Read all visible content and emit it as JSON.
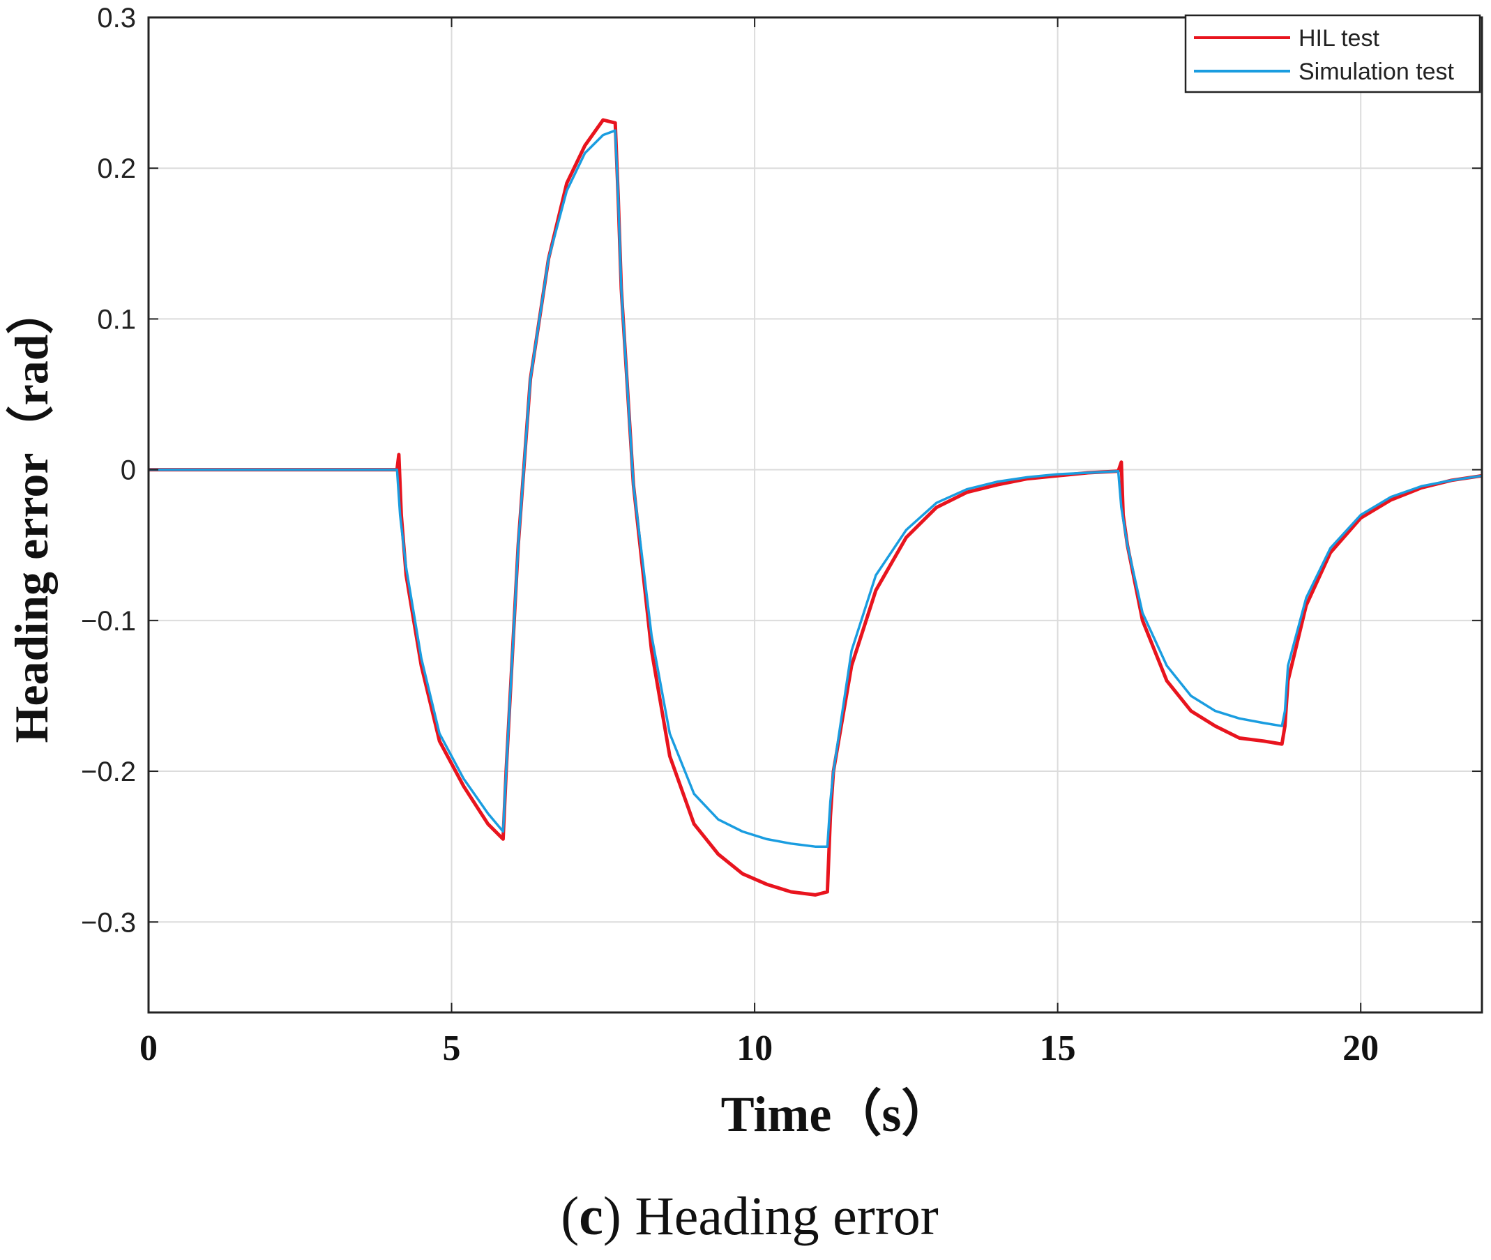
{
  "chart_data": {
    "type": "line",
    "title": "",
    "xlabel": "Time（s）",
    "ylabel": "Heading error（rad）",
    "xlim": [
      0,
      22
    ],
    "ylim": [
      -0.36,
      0.3
    ],
    "xticks": [
      0,
      5,
      10,
      15,
      20
    ],
    "yticks": [
      0.3,
      0.2,
      0.1,
      0,
      -0.1,
      -0.2,
      -0.3
    ],
    "ytick_labels": [
      "0.3",
      "0.2",
      "0.1",
      "0",
      "−0.1",
      "−0.2",
      "−0.3"
    ],
    "grid": true,
    "legend_position": "top-right",
    "series": [
      {
        "name": "HIL  test",
        "color": "#e8141e",
        "x": [
          0,
          4.1,
          4.13,
          4.17,
          4.25,
          4.5,
          4.8,
          5.2,
          5.6,
          5.85,
          5.9,
          6.1,
          6.3,
          6.6,
          6.9,
          7.2,
          7.5,
          7.7,
          7.75,
          7.8,
          8.0,
          8.3,
          8.6,
          9.0,
          9.4,
          9.8,
          10.2,
          10.6,
          11.0,
          11.2,
          11.25,
          11.3,
          11.6,
          12.0,
          12.5,
          13.0,
          13.5,
          14.0,
          14.5,
          15.0,
          15.5,
          16.0,
          16.05,
          16.08,
          16.15,
          16.4,
          16.8,
          17.2,
          17.6,
          18.0,
          18.4,
          18.7,
          18.75,
          18.8,
          19.1,
          19.5,
          20.0,
          20.5,
          21.0,
          21.5,
          22.0
        ],
        "y": [
          0,
          0,
          0.01,
          -0.03,
          -0.07,
          -0.13,
          -0.18,
          -0.21,
          -0.235,
          -0.245,
          -0.2,
          -0.05,
          0.06,
          0.14,
          0.19,
          0.215,
          0.232,
          0.23,
          0.18,
          0.12,
          -0.01,
          -0.12,
          -0.19,
          -0.235,
          -0.255,
          -0.268,
          -0.275,
          -0.28,
          -0.282,
          -0.28,
          -0.23,
          -0.2,
          -0.13,
          -0.08,
          -0.045,
          -0.025,
          -0.015,
          -0.01,
          -0.006,
          -0.004,
          -0.002,
          -0.001,
          0.005,
          -0.03,
          -0.05,
          -0.1,
          -0.14,
          -0.16,
          -0.17,
          -0.178,
          -0.18,
          -0.182,
          -0.17,
          -0.14,
          -0.09,
          -0.055,
          -0.032,
          -0.02,
          -0.012,
          -0.007,
          -0.004
        ]
      },
      {
        "name": "Simulation test",
        "color": "#1a9de0",
        "x": [
          0,
          4.1,
          4.15,
          4.25,
          4.5,
          4.8,
          5.2,
          5.6,
          5.85,
          5.9,
          6.1,
          6.3,
          6.6,
          6.9,
          7.2,
          7.5,
          7.7,
          7.75,
          7.8,
          8.0,
          8.3,
          8.6,
          9.0,
          9.4,
          9.8,
          10.2,
          10.6,
          11.0,
          11.2,
          11.25,
          11.3,
          11.6,
          12.0,
          12.5,
          13.0,
          13.5,
          14.0,
          14.5,
          15.0,
          15.5,
          16.0,
          16.05,
          16.15,
          16.4,
          16.8,
          17.2,
          17.6,
          18.0,
          18.4,
          18.7,
          18.75,
          18.8,
          19.1,
          19.5,
          20.0,
          20.5,
          21.0,
          21.5,
          22.0
        ],
        "y": [
          0,
          0,
          -0.03,
          -0.065,
          -0.125,
          -0.175,
          -0.205,
          -0.228,
          -0.24,
          -0.2,
          -0.05,
          0.06,
          0.14,
          0.185,
          0.21,
          0.222,
          0.225,
          0.18,
          0.12,
          -0.01,
          -0.11,
          -0.175,
          -0.215,
          -0.232,
          -0.24,
          -0.245,
          -0.248,
          -0.25,
          -0.25,
          -0.22,
          -0.2,
          -0.12,
          -0.07,
          -0.04,
          -0.022,
          -0.013,
          -0.008,
          -0.005,
          -0.003,
          -0.002,
          -0.001,
          -0.025,
          -0.05,
          -0.095,
          -0.13,
          -0.15,
          -0.16,
          -0.165,
          -0.168,
          -0.17,
          -0.16,
          -0.13,
          -0.085,
          -0.052,
          -0.03,
          -0.018,
          -0.011,
          -0.007,
          -0.004
        ]
      }
    ]
  },
  "caption": {
    "label": "c",
    "text": "Heading error"
  }
}
